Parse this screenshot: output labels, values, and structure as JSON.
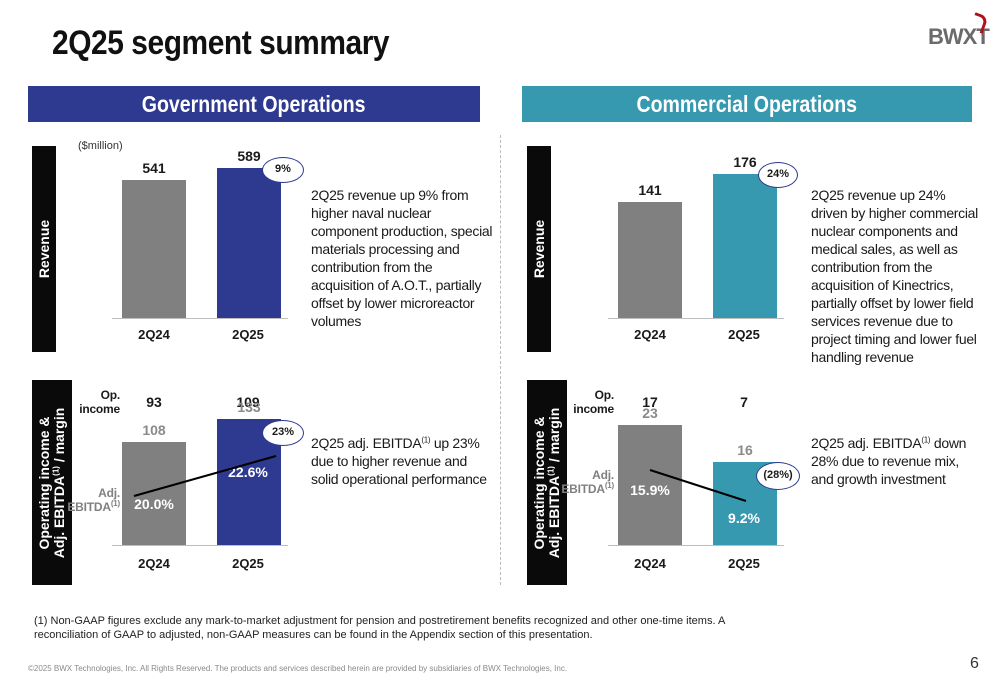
{
  "title": "2Q25 segment summary",
  "logo": "BWXT",
  "government": {
    "banner": "Government Operations",
    "unit": "($million)",
    "revenue_label": "Revenue",
    "op_label_line1": "Operating income &",
    "op_label_line2": "Adj. EBITDA",
    "op_label_sup": "(1)",
    "op_label_line2_tail": " / margin",
    "revenue": {
      "categories": [
        "2Q24",
        "2Q25"
      ],
      "values": [
        541,
        589
      ],
      "change": "9%",
      "description": "2Q25 revenue up 9% from higher naval nuclear component production, special materials processing and contribution from the acquisition of A.O.T., partially offset by lower microreactor volumes"
    },
    "ebitda": {
      "categories": [
        "2Q24",
        "2Q25"
      ],
      "op_income_label_1": "Op.",
      "op_income_label_2": "income",
      "op_income": [
        93,
        109
      ],
      "adj_ebitda_label_1": "Adj.",
      "adj_ebitda_label_2": "EBITDA",
      "adj_ebitda_sup": "(1)",
      "adj_ebitda": [
        108,
        133
      ],
      "margin": [
        "20.0%",
        "22.6%"
      ],
      "margin_values": [
        20.0,
        22.6
      ],
      "change": "23%",
      "description_pre": "2Q25 adj. EBITDA",
      "description_sup": "(1)",
      "description_post": " up 23% due to higher revenue and solid operational performance"
    }
  },
  "commercial": {
    "banner": "Commercial Operations",
    "revenue_label": "Revenue",
    "op_label_line1": "Operating income &",
    "op_label_line2": "Adj. EBITDA",
    "op_label_sup": "(1)",
    "op_label_line2_tail": " / margin",
    "revenue": {
      "categories": [
        "2Q24",
        "2Q25"
      ],
      "values": [
        141,
        176
      ],
      "change": "24%",
      "description": "2Q25 revenue up 24% driven by higher commercial nuclear components and medical sales, as well as contribution from the acquisition of Kinectrics, partially offset by lower field services revenue due to project timing and lower fuel handling revenue"
    },
    "ebitda": {
      "categories": [
        "2Q24",
        "2Q25"
      ],
      "op_income_label_1": "Op.",
      "op_income_label_2": "income",
      "op_income": [
        17,
        7
      ],
      "adj_ebitda_label_1": "Adj.",
      "adj_ebitda_label_2": "EBITDA",
      "adj_ebitda_sup": "(1)",
      "adj_ebitda": [
        23,
        16
      ],
      "margin": [
        "15.9%",
        "9.2%"
      ],
      "margin_values": [
        15.9,
        9.2
      ],
      "change": "(28%)",
      "description_pre": "2Q25 adj. EBITDA",
      "description_sup": "(1)",
      "description_post": " down 28% due to revenue mix, and growth investment"
    }
  },
  "footnote": "(1) Non-GAAP figures exclude any mark-to-market adjustment for pension and postretirement benefits recognized and other one-time items.  A reconciliation of GAAP to adjusted, non-GAAP measures can be found in the Appendix section of this presentation.",
  "copyright": "©2025 BWX Technologies, Inc. All Rights Reserved.   The products and services described herein are provided by subsidiaries of BWX Technologies, Inc.",
  "page_number": "6",
  "colors": {
    "navy": "#2e3a8f",
    "teal": "#3799b0",
    "grey": "#808080"
  }
}
